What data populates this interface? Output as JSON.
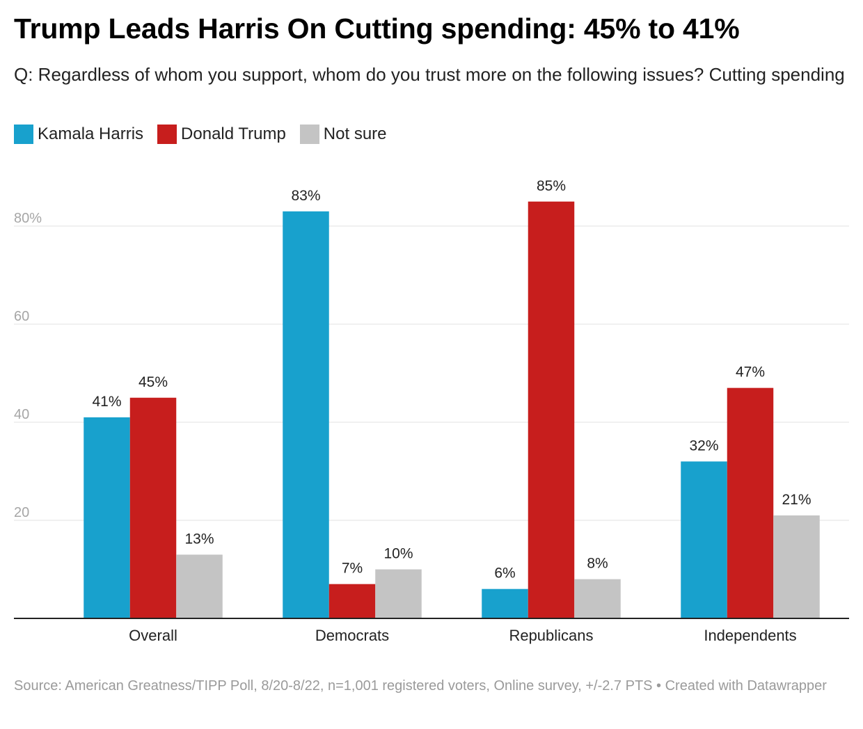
{
  "title": "Trump Leads Harris On Cutting spending: 45% to 41%",
  "subtitle": "Q: Regardless of whom you support, whom do you trust more on the following issues? Cutting spending",
  "footer": "Source: American Greatness/TIPP Poll, 8/20-8/22, n=1,001 registered voters, Online survey, +/-2.7 PTS • Created with Datawrapper",
  "colors": {
    "harris": "#18a1cd",
    "trump": "#c71e1d",
    "not_sure": "#c4c4c4",
    "grid": "#e2e2e2",
    "axis": "#222222",
    "tick_text": "#a6a6a6"
  },
  "chart_data": {
    "type": "bar",
    "categories": [
      "Overall",
      "Democrats",
      "Republicans",
      "Independents"
    ],
    "series": [
      {
        "name": "Kamala Harris",
        "values": [
          41,
          83,
          6,
          32
        ],
        "color": "#18a1cd"
      },
      {
        "name": "Donald Trump",
        "values": [
          45,
          7,
          85,
          47
        ],
        "color": "#c71e1d"
      },
      {
        "name": "Not sure",
        "values": [
          13,
          10,
          8,
          21
        ],
        "color": "#c4c4c4"
      }
    ],
    "value_labels": [
      [
        "41%",
        "83%",
        "6%",
        "32%"
      ],
      [
        "45%",
        "7%",
        "85%",
        "47%"
      ],
      [
        "13%",
        "10%",
        "8%",
        "21%"
      ]
    ],
    "yticks": [
      20,
      40,
      60,
      80
    ],
    "ytick_labels": [
      "20",
      "40",
      "60",
      "80%"
    ],
    "ylim": [
      0,
      92
    ],
    "grid": true,
    "legend_position": "top-left"
  }
}
